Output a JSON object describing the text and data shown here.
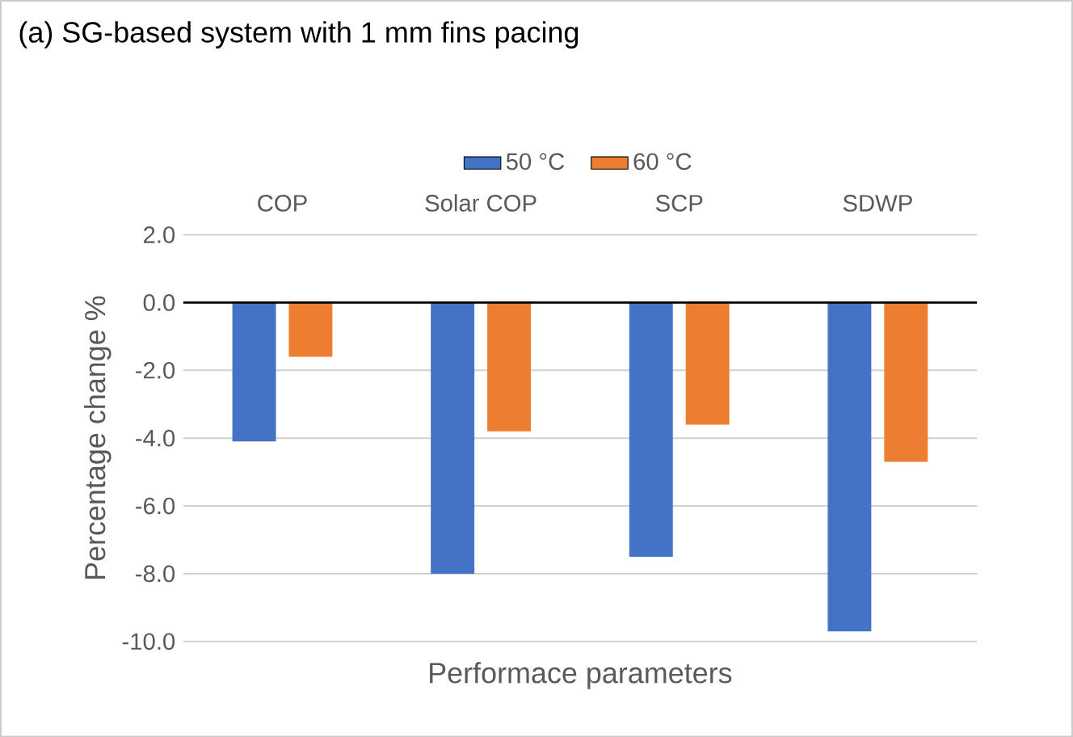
{
  "chart_data": {
    "type": "bar",
    "title": "(a) SG-based system with 1 mm fins pacing",
    "xlabel": "Performace parameters",
    "ylabel": "Percentage change %",
    "categories": [
      "COP",
      "Solar COP",
      "SCP",
      "SDWP"
    ],
    "series": [
      {
        "name": "50 °C",
        "color": "#4472c4",
        "values": [
          -4.1,
          -8.0,
          -7.5,
          -9.7
        ]
      },
      {
        "name": "60 °C",
        "color": "#ed7d31",
        "values": [
          -1.6,
          -3.8,
          -3.6,
          -4.7
        ]
      }
    ],
    "ylim": [
      -10,
      2
    ],
    "yticks": [
      {
        "value": 2,
        "label": "2.0"
      },
      {
        "value": 0,
        "label": "0.0"
      },
      {
        "value": -2,
        "label": "-2.0"
      },
      {
        "value": -4,
        "label": "-4.0"
      },
      {
        "value": -6,
        "label": "-6.0"
      },
      {
        "value": -8,
        "label": "-8.0"
      },
      {
        "value": -10,
        "label": "-10.0"
      }
    ],
    "grid": "y",
    "legend": "top"
  }
}
